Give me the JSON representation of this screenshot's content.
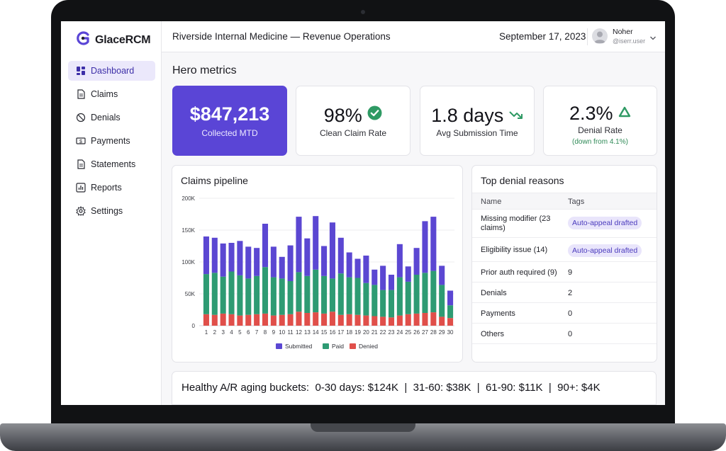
{
  "app": {
    "name": "GlaceRCM"
  },
  "sidebar": {
    "items": [
      {
        "label": "Dashboard",
        "icon": "dashboard-icon",
        "active": true
      },
      {
        "label": "Claims",
        "icon": "document-icon",
        "active": false
      },
      {
        "label": "Denials",
        "icon": "ban-icon",
        "active": false
      },
      {
        "label": "Payments",
        "icon": "dollar-card-icon",
        "active": false
      },
      {
        "label": "Statements",
        "icon": "document-icon",
        "active": false
      },
      {
        "label": "Reports",
        "icon": "bar-chart-icon",
        "active": false
      },
      {
        "label": "Settings",
        "icon": "gear-icon",
        "active": false
      }
    ]
  },
  "header": {
    "org": "Riverside Internal Medicine — Revenue Operations",
    "date": "September 17, 2023",
    "user": {
      "name": "Noher",
      "handle": "@iserr.user"
    }
  },
  "hero": {
    "title": "Hero metrics",
    "metrics": [
      {
        "value": "$847,213",
        "label": "Collected MTD"
      },
      {
        "value": "98%",
        "label": "Clean Claim Rate",
        "icon": "check-circle-icon"
      },
      {
        "value": "1.8 days",
        "label": "Avg Submission Time",
        "icon": "trend-down-icon"
      },
      {
        "value": "2.3%",
        "label": "Denial Rate",
        "note": "(down from 4.1%)",
        "icon": "triangle-up-icon"
      }
    ]
  },
  "pipeline": {
    "title": "Claims pipeline"
  },
  "chart_data": {
    "type": "bar",
    "stacked": true,
    "title": "Claims pipeline",
    "categories": [
      "1",
      "2",
      "3",
      "4",
      "5",
      "6",
      "7",
      "8",
      "9",
      "10",
      "11",
      "12",
      "13",
      "14",
      "15",
      "16",
      "17",
      "18",
      "19",
      "20",
      "21",
      "22",
      "23",
      "24",
      "25",
      "26",
      "27",
      "28",
      "29",
      "30"
    ],
    "yticks": [
      "200K",
      "150K",
      "100K",
      "50K",
      "0"
    ],
    "ylim": [
      0,
      200000
    ],
    "grid": true,
    "legend": "bottom",
    "series": [
      {
        "name": "Denied",
        "color": "#e04f4a",
        "values": [
          18000,
          17000,
          19000,
          18000,
          16000,
          17000,
          18000,
          19000,
          16000,
          17000,
          18000,
          22000,
          20000,
          21000,
          19000,
          22000,
          17000,
          18000,
          17000,
          16000,
          15000,
          14000,
          13000,
          16000,
          18000,
          19000,
          20000,
          21000,
          14000,
          12000
        ]
      },
      {
        "name": "Paid",
        "color": "#2e9b73",
        "values": [
          63000,
          66000,
          58000,
          67000,
          63000,
          57000,
          60000,
          73000,
          60000,
          57000,
          52000,
          62000,
          58000,
          67000,
          59000,
          52000,
          65000,
          58000,
          58000,
          51000,
          49000,
          42000,
          43000,
          60000,
          51000,
          61000,
          63000,
          65000,
          50000,
          20000
        ]
      },
      {
        "name": "Submitted",
        "color": "#5b47d2",
        "values": [
          59000,
          55000,
          52000,
          45000,
          54000,
          50000,
          44000,
          68000,
          48000,
          34000,
          56000,
          87000,
          59000,
          84000,
          47000,
          88000,
          56000,
          39000,
          30000,
          43000,
          24000,
          38000,
          24000,
          52000,
          24000,
          42000,
          81000,
          85000,
          30000,
          23000
        ]
      }
    ]
  },
  "denials": {
    "title": "Top denial reasons",
    "headers": {
      "name": "Name",
      "tags": "Tags"
    },
    "rows": [
      {
        "name": "Missing modifier (23 claims)",
        "tag": "Auto-appeal drafted",
        "pill": true
      },
      {
        "name": "Eligibility issue (14)",
        "tag": "Auto-appeal drafted",
        "pill": true
      },
      {
        "name": "Prior auth required (9)",
        "tag": "9",
        "pill": false
      },
      {
        "name": "Denials",
        "tag": "2",
        "pill": false
      },
      {
        "name": "Payments",
        "tag": "0",
        "pill": false
      },
      {
        "name": "Others",
        "tag": "0",
        "pill": false
      }
    ]
  },
  "ar": {
    "label": "Healthy A/R aging buckets:",
    "buckets": [
      "0-30 days: $124K",
      "31-60: $38K",
      "61-90: $11K",
      "90+: $4K"
    ]
  },
  "colors": {
    "accent": "#5a45d6",
    "paid": "#2e9b73",
    "denied": "#e04f4a",
    "positive": "#2f8a57"
  }
}
